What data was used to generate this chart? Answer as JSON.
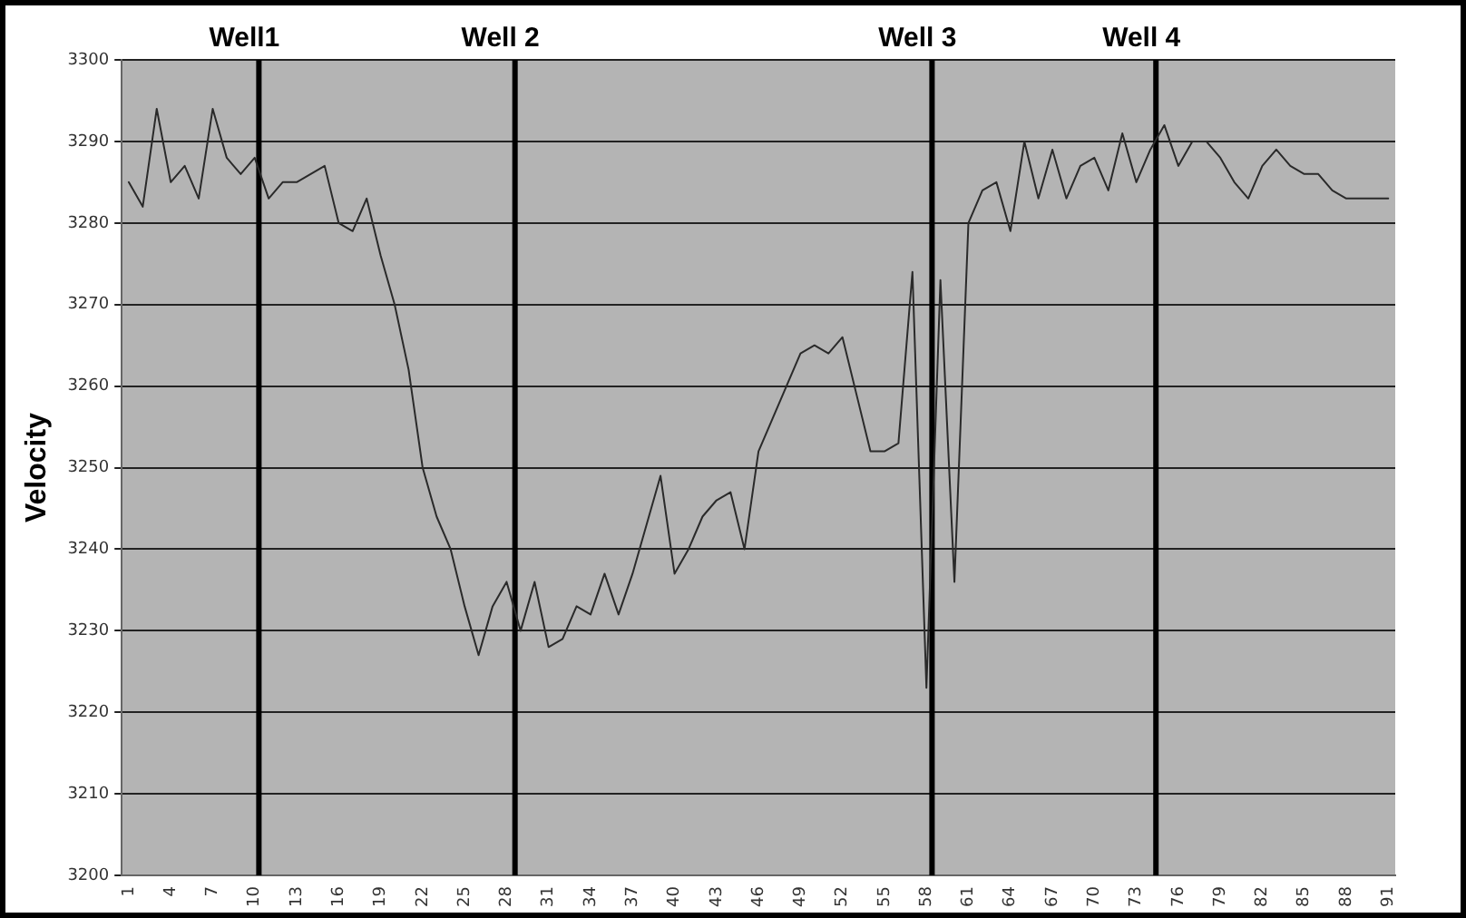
{
  "chart_data": {
    "type": "line",
    "ylabel": "Velocity",
    "x": [
      1,
      2,
      3,
      4,
      5,
      6,
      7,
      8,
      9,
      10,
      11,
      12,
      13,
      14,
      15,
      16,
      17,
      18,
      19,
      20,
      21,
      22,
      23,
      24,
      25,
      26,
      27,
      28,
      29,
      30,
      31,
      32,
      33,
      34,
      35,
      36,
      37,
      38,
      39,
      40,
      41,
      42,
      43,
      44,
      45,
      46,
      47,
      48,
      49,
      50,
      51,
      52,
      53,
      54,
      55,
      56,
      57,
      58,
      59,
      60,
      61,
      62,
      63,
      64,
      65,
      66,
      67,
      68,
      69,
      70,
      71,
      72,
      73,
      74,
      75,
      76,
      77,
      78,
      79,
      80,
      81,
      82,
      83,
      84,
      85,
      86,
      87,
      88,
      89,
      90,
      91
    ],
    "series": [
      {
        "color": "#2a2a2a",
        "values": [
          3285,
          3282,
          3294,
          3285,
          3287,
          3283,
          3294,
          3288,
          3286,
          3288,
          3283,
          3285,
          3285,
          3286,
          3287,
          3280,
          3279,
          3283,
          3276,
          3270,
          3262,
          3250,
          3244,
          3240,
          3233,
          3227,
          3233,
          3236,
          3230,
          3236,
          3228,
          3229,
          3233,
          3232,
          3237,
          3232,
          3237,
          3243,
          3249,
          3237,
          3240,
          3244,
          3246,
          3247,
          3240,
          3252,
          3256,
          3260,
          3264,
          3265,
          3264,
          3266,
          3259,
          3252,
          3252,
          3253,
          3274,
          3223,
          3273,
          3236,
          3280,
          3284,
          3285,
          3279,
          3290,
          3283,
          3289,
          3283,
          3287,
          3288,
          3284,
          3291,
          3285,
          3289,
          3292,
          3287,
          3290,
          3290,
          3288,
          3285,
          3283,
          3287,
          3289,
          3287,
          3286,
          3286,
          3284,
          3283,
          3283,
          3283,
          3283
        ]
      }
    ],
    "xlim": [
      0.5,
      91.5
    ],
    "xticks": [
      1,
      4,
      7,
      10,
      13,
      16,
      19,
      22,
      25,
      28,
      31,
      34,
      37,
      40,
      43,
      46,
      49,
      52,
      55,
      58,
      61,
      64,
      67,
      70,
      73,
      76,
      79,
      82,
      85,
      88,
      91
    ],
    "ylim": [
      3200,
      3300
    ],
    "yticks": [
      3200,
      3210,
      3220,
      3230,
      3240,
      3250,
      3260,
      3270,
      3280,
      3290,
      3300
    ],
    "grid": "y",
    "legend": false,
    "marker": "none",
    "line_style": "solid",
    "ref_lines": [
      {
        "axis": "x",
        "value": 10.3,
        "label": "Well1",
        "color": "#000000"
      },
      {
        "axis": "x",
        "value": 28.6,
        "label": "Well 2",
        "color": "#000000"
      },
      {
        "axis": "x",
        "value": 58.4,
        "label": "Well 3",
        "color": "#000000"
      },
      {
        "axis": "x",
        "value": 74.4,
        "label": "Well 4",
        "color": "#000000"
      }
    ]
  }
}
